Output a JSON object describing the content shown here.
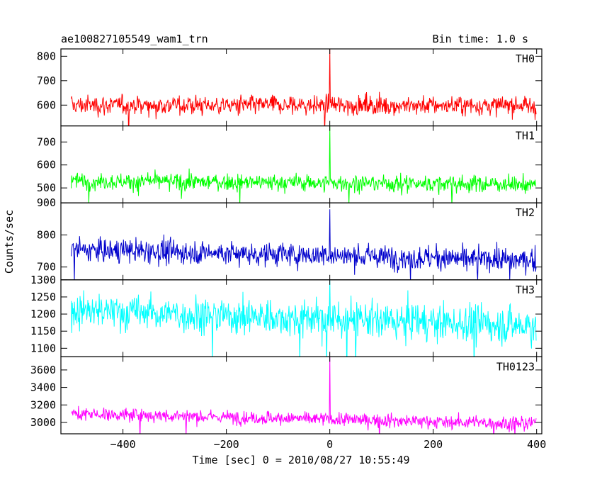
{
  "chart_data": {
    "type": "line",
    "title_left": "ae100827105549_wam1_trn",
    "title_right": "Bin time: 1.0 s",
    "xlabel": "Time [sec] 0 = 2010/08/27 10:55:49",
    "ylabel": "Counts/sec",
    "xlim": [
      -520,
      410
    ],
    "x_ticks": [
      -400,
      -200,
      0,
      200,
      400
    ],
    "x_tick_labels": [
      "−400",
      "−200",
      "0",
      "200",
      "400"
    ],
    "x_range": [
      -500,
      399
    ],
    "spike_x": 0,
    "panels": [
      {
        "name": "TH0",
        "color": "#ff0000",
        "ylim": [
          515,
          830
        ],
        "y_ticks": [
          600,
          700,
          800
        ],
        "y_tick_labels": [
          "600",
          "700",
          "800"
        ],
        "mean_start": 600,
        "mean_end": 598,
        "noise_sd": 28,
        "spike_peak": 830
      },
      {
        "name": "TH1",
        "color": "#00ff00",
        "ylim": [
          435,
          770
        ],
        "y_ticks": [
          500,
          600,
          700
        ],
        "y_tick_labels": [
          "500",
          "600",
          "700"
        ],
        "mean_start": 530,
        "mean_end": 515,
        "noise_sd": 26,
        "spike_peak": 770
      },
      {
        "name": "TH2",
        "color": "#0000cc",
        "ylim": [
          660,
          900
        ],
        "y_ticks": [
          700,
          800,
          900
        ],
        "y_tick_labels": [
          "700",
          "800",
          "900"
        ],
        "mean_start": 755,
        "mean_end": 720,
        "noise_sd": 26,
        "spike_peak": 880
      },
      {
        "name": "TH3",
        "color": "#00ffff",
        "ylim": [
          1075,
          1300
        ],
        "y_ticks": [
          1100,
          1150,
          1200,
          1250,
          1300
        ],
        "y_tick_labels": [
          "1100",
          "1150",
          "1200",
          "1250",
          "1300"
        ],
        "mean_start": 1210,
        "mean_end": 1165,
        "noise_sd": 38,
        "spike_peak": 1300
      },
      {
        "name": "TH0123",
        "color": "#ff00ff",
        "ylim": [
          2870,
          3750
        ],
        "y_ticks": [
          3000,
          3200,
          3400,
          3600
        ],
        "y_tick_labels": [
          "3000",
          "3200",
          "3400",
          "3600"
        ],
        "mean_start": 3100,
        "mean_end": 2985,
        "noise_sd": 55,
        "spike_peak": 3750
      }
    ]
  }
}
